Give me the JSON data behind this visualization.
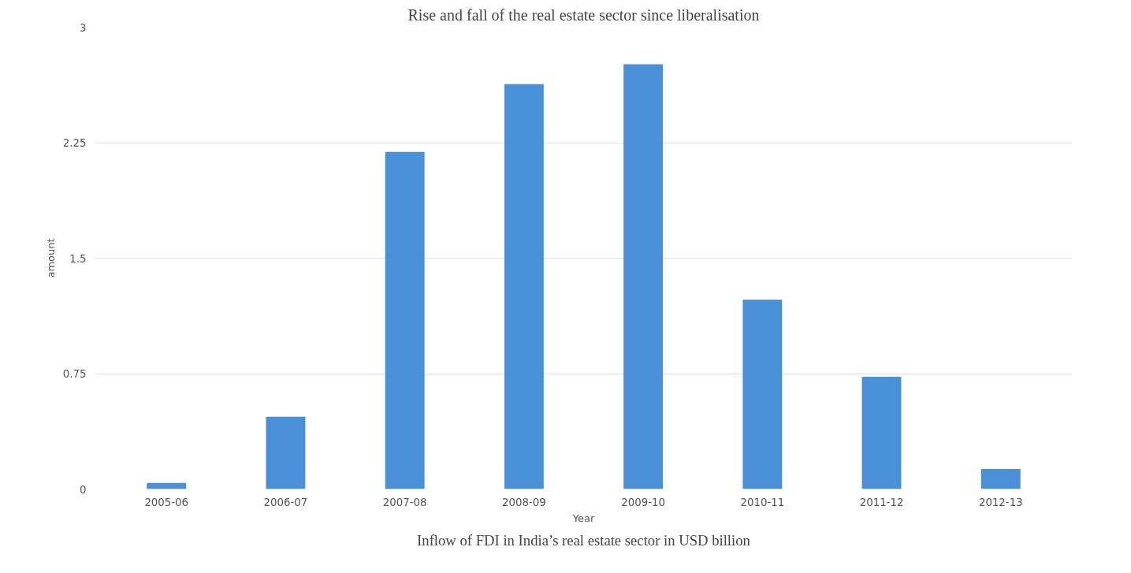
{
  "chart_data": {
    "type": "bar",
    "title": "Rise and fall of the real estate sector since liberalisation",
    "xlabel": "Year",
    "ylabel": "amount",
    "categories": [
      "2005-06",
      "2006-07",
      "2007-08",
      "2008-09",
      "2009-10",
      "2010-11",
      "2011-12",
      "2012-13"
    ],
    "values": [
      0.04,
      0.47,
      2.19,
      2.63,
      2.76,
      1.23,
      0.73,
      0.13
    ],
    "color": "#4a90d9",
    "ylim": [
      0,
      3
    ],
    "yticks": [
      0,
      {
        "value": 0.75,
        "label": "0.75"
      },
      {
        "value": 1.5,
        "label": "1.5"
      },
      {
        "value": 2.25,
        "label": "2.25"
      },
      3
    ],
    "grid": "y",
    "annotations": [
      "Inflow of FDI in India’s real estate sector in USD billion"
    ]
  }
}
